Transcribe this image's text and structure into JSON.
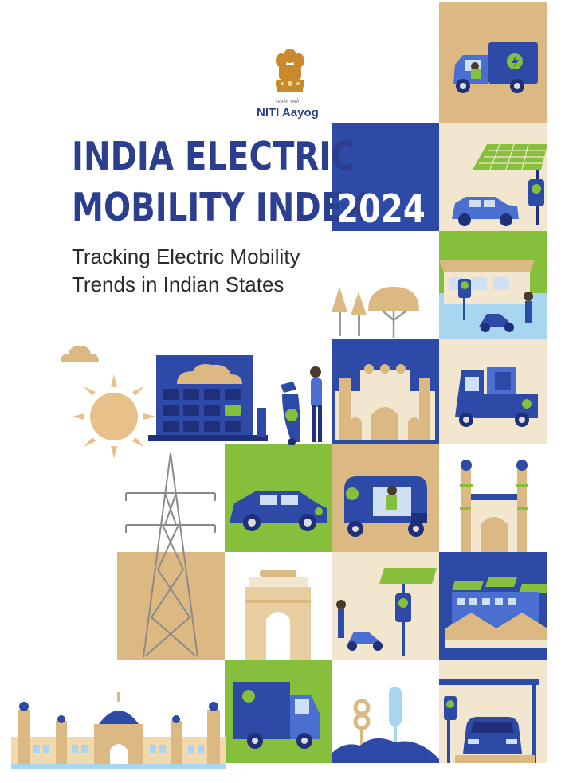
{
  "header": {
    "organization": "NITI Aayog",
    "emblem_motto": "सत्यमेव जयते"
  },
  "title": {
    "line1": "INDIA ELECTRIC",
    "line2": "MOBILITY INDEX",
    "year": "2024"
  },
  "subtitle": {
    "line1": "Tracking Electric Mobility",
    "line2": "Trends in Indian States"
  },
  "colors": {
    "navy": "#2c4aa6",
    "title_blue": "#2c3f8f",
    "green": "#85bf3b",
    "tan": "#dcb882",
    "cream": "#f3e6cf"
  },
  "illustrations": [
    "electric-delivery-truck-icon",
    "solar-charging-car-icon",
    "house-scooter-charging-icon",
    "trees-icon",
    "cloud-icon",
    "sun-icon",
    "battery-building-icon",
    "person-with-scooter-icon",
    "gateway-of-india-icon",
    "electric-mini-truck-icon",
    "transmission-tower-icon",
    "electric-car-icon",
    "electric-rickshaw-icon",
    "charminar-icon",
    "india-gate-icon",
    "solar-charger-scooter-icon",
    "solar-factory-icon",
    "palace-icon",
    "electric-van-icon",
    "park-trees-icon",
    "car-charging-station-icon"
  ]
}
